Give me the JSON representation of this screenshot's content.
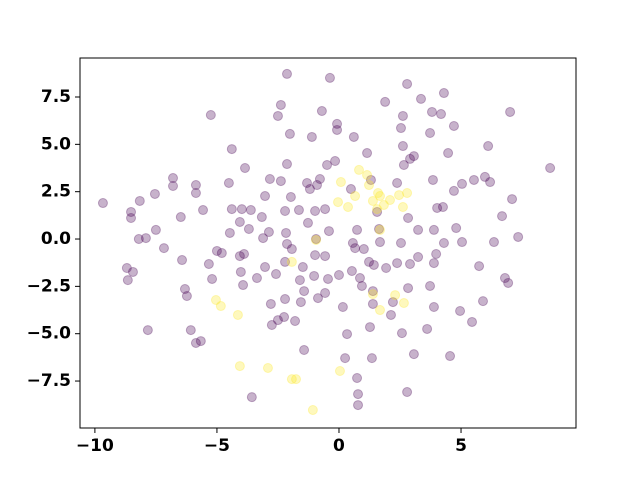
{
  "chart_data": {
    "type": "scatter",
    "xlim": [
      -10.61,
      9.71
    ],
    "ylim": [
      -9.98,
      9.56
    ],
    "xticks": [
      {
        "value": -10,
        "label": "−10"
      },
      {
        "value": -5,
        "label": "−5"
      },
      0,
      5
    ],
    "yticks": [
      {
        "value": -7.5,
        "label": "−7.5"
      },
      {
        "value": -5,
        "label": "−5.0"
      },
      {
        "value": -2.5,
        "label": "−2.5"
      },
      {
        "value": 0,
        "label": "0.0"
      },
      2.5,
      {
        "value": 5,
        "label": "5.0"
      },
      7.5
    ],
    "grid": false,
    "alpha": 0.3,
    "series": [
      {
        "color": "#440154",
        "x": [
          -9.67,
          -8.52,
          -8.52,
          -8.16,
          -7.91,
          -8.2,
          -8.69,
          -8.65,
          -8.44,
          -7.83,
          -7.54,
          -7.17,
          -6.8,
          -6.8,
          -6.48,
          -6.43,
          -6.31,
          -6.23,
          -6.07,
          -5.86,
          -5.86,
          -5.86,
          -5.66,
          -5.57,
          -5.33,
          -5.25,
          -5.2,
          -5.0,
          -4.8,
          -4.39,
          -4.51,
          -4.39,
          -4.47,
          -4.06,
          -4.06,
          -4.02,
          -3.85,
          -3.98,
          -3.89,
          -3.93,
          -3.57,
          -3.69,
          -3.61,
          -3.36,
          -3.03,
          -3.16,
          -3.11,
          -3.03,
          -2.87,
          -2.83,
          -2.75,
          -2.79,
          -2.58,
          -2.5,
          -2.5,
          -2.38,
          -2.38,
          -2.21,
          -2.25,
          -2.17,
          -2.13,
          -2.21,
          -2.21,
          -2.13,
          -1.97,
          -2.13,
          -2.01,
          -1.93,
          -1.8,
          -1.64,
          -1.6,
          -1.56,
          -1.48,
          -1.43,
          -1.43,
          -1.31,
          -1.27,
          -1.19,
          -1.11,
          -0.98,
          -0.94,
          -0.98,
          -1.02,
          -0.9,
          -0.86,
          -0.78,
          -0.7,
          -0.57,
          -0.57,
          -0.57,
          -0.45,
          -0.49,
          -0.41,
          -0.37,
          -0.16,
          -0.08,
          -0.08,
          0.0,
          0.16,
          0.25,
          0.33,
          0.49,
          0.53,
          0.57,
          0.61,
          0.66,
          0.74,
          0.78,
          0.78,
          0.74,
          0.86,
          0.94,
          1.02,
          1.15,
          1.23,
          1.31,
          1.27,
          1.35,
          1.39,
          1.43,
          1.39,
          1.56,
          1.64,
          1.68,
          1.89,
          1.93,
          2.13,
          2.21,
          2.38,
          2.38,
          2.54,
          2.62,
          2.58,
          2.54,
          2.62,
          2.66,
          2.79,
          2.79,
          2.83,
          2.83,
          2.91,
          2.91,
          3.07,
          3.07,
          3.24,
          3.24,
          3.36,
          3.61,
          3.73,
          3.81,
          3.73,
          3.85,
          3.89,
          3.89,
          3.89,
          4.02,
          3.98,
          4.18,
          4.26,
          4.3,
          4.3,
          4.47,
          4.55,
          4.71,
          4.71,
          4.8,
          4.96,
          5.04,
          5.04,
          5.45,
          5.53,
          5.74,
          5.9,
          5.98,
          6.11,
          6.19,
          6.35,
          6.8,
          6.93,
          7.09,
          7.01,
          7.34,
          8.65,
          6.68,
          -7.5
        ],
        "values": [
          1.9,
          1.43,
          1.11,
          2.01,
          0.05,
          0.0,
          -1.53,
          -2.17,
          -1.74,
          -4.81,
          2.38,
          -0.48,
          3.22,
          2.8,
          1.16,
          -1.11,
          -2.64,
          -3.01,
          -4.81,
          2.85,
          2.43,
          -5.49,
          -5.39,
          1.53,
          -1.32,
          6.55,
          -2.11,
          -0.63,
          -0.74,
          4.75,
          2.96,
          1.58,
          0.32,
          -0.9,
          0.9,
          -1.74,
          3.75,
          1.58,
          -0.79,
          -2.43,
          -8.35,
          0.53,
          1.53,
          -2.06,
          2.27,
          1.16,
          0.05,
          -1.48,
          0.37,
          3.17,
          -4.54,
          -3.43,
          -1.85,
          -4.28,
          6.5,
          7.08,
          3.06,
          1.48,
          -4.12,
          0.32,
          -0.26,
          -1.21,
          -3.17,
          3.96,
          2.22,
          8.72,
          5.55,
          -0.53,
          -4.33,
          1.53,
          -2.17,
          -3.33,
          -1.48,
          -2.75,
          -5.86,
          2.96,
          0.85,
          2.64,
          5.39,
          1.48,
          0.0,
          -0.85,
          -1.95,
          2.85,
          -3.12,
          3.17,
          6.76,
          1.58,
          -0.9,
          -2.85,
          -2.11,
          3.91,
          0.42,
          8.51,
          4.12,
          6.08,
          5.76,
          -1.9,
          -3.59,
          -6.29,
          -5.02,
          2.64,
          -1.69,
          -0.21,
          5.39,
          -0.48,
          0.48,
          -8.77,
          -8.19,
          -7.34,
          -2.06,
          -2.48,
          -0.53,
          4.54,
          -1.21,
          3.12,
          -4.65,
          -6.29,
          -3.43,
          -1.37,
          -2.75,
          1.43,
          0.53,
          -0.16,
          7.24,
          -1.53,
          -4.01,
          -3.33,
          2.96,
          -1.27,
          5.86,
          6.5,
          -4.97,
          -0.21,
          4.91,
          3.91,
          -8.08,
          8.19,
          -2.59,
          1.11,
          4.23,
          -1.32,
          -6.08,
          4.38,
          0.48,
          -0.95,
          7.4,
          -4.75,
          5.6,
          6.71,
          -2.48,
          3.12,
          0.48,
          -1.27,
          -3.59,
          1.64,
          -0.79,
          6.6,
          1.69,
          -0.21,
          7.71,
          4.54,
          -6.18,
          2.54,
          5.97,
          0.58,
          -3.8,
          -0.16,
          2.91,
          -4.38,
          3.12,
          -1.43,
          -3.28,
          3.28,
          4.91,
          3.01,
          -0.16,
          -2.06,
          -2.32,
          2.11,
          6.71,
          0.11,
          3.75,
          1.21,
          0.48
        ]
      },
      {
        "color": "#fde725",
        "x": [
          -5.04,
          -4.84,
          -4.14,
          -4.06,
          -2.91,
          -1.93,
          -1.76,
          -1.93,
          -1.07,
          0.04,
          -0.94,
          -0.04,
          0.08,
          0.37,
          0.66,
          0.82,
          1.15,
          1.23,
          1.39,
          1.6,
          1.56,
          1.68,
          1.84,
          2.09,
          2.46,
          2.62,
          2.79,
          1.68,
          1.39,
          1.68,
          2.3,
          2.66
        ],
        "values": [
          -3.22,
          -3.54,
          -4.01,
          -6.71,
          -6.81,
          -7.4,
          -7.4,
          -1.21,
          -9.03,
          -6.97,
          -0.05,
          1.95,
          3.01,
          1.69,
          2.27,
          3.65,
          3.38,
          2.85,
          2.01,
          2.43,
          1.58,
          2.27,
          1.8,
          2.06,
          2.32,
          1.69,
          2.43,
          0.48,
          -2.91,
          -3.75,
          -2.96,
          -3.38
        ]
      }
    ]
  }
}
